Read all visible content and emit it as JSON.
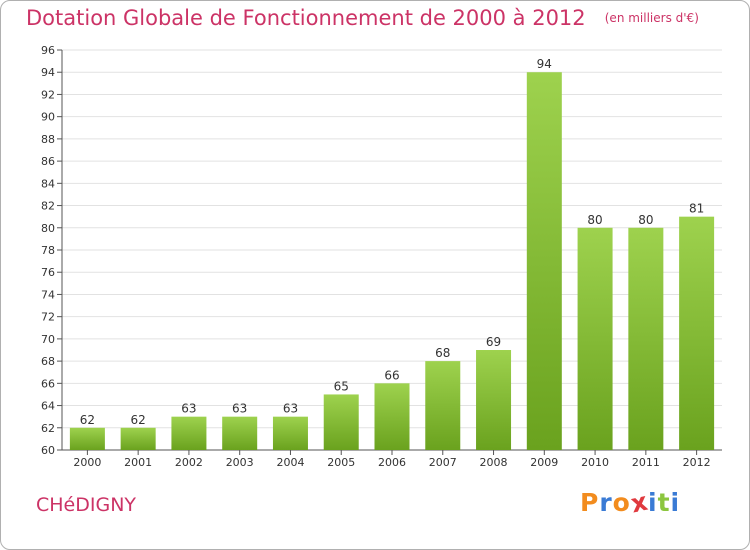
{
  "header": {
    "title": "Dotation Globale de Fonctionnement de 2000 à 2012",
    "unit_note": "(en milliers d'€)"
  },
  "footer": {
    "commune": "CHéDIGNY",
    "brand_letters": [
      "P",
      "r",
      "o",
      "x",
      "i",
      "t",
      "i"
    ],
    "brand_colors": [
      "#f28c1e",
      "#3a7bd5",
      "#f28c1e",
      "#e0393e",
      "#3a7bd5",
      "#8cc63f",
      "#3a7bd5"
    ]
  },
  "chart_data": {
    "type": "bar",
    "categories": [
      "2000",
      "2001",
      "2002",
      "2003",
      "2004",
      "2005",
      "2006",
      "2007",
      "2008",
      "2009",
      "2010",
      "2011",
      "2012"
    ],
    "values": [
      62,
      62,
      63,
      63,
      63,
      65,
      66,
      68,
      69,
      94,
      80,
      80,
      81
    ],
    "title": "Dotation Globale de Fonctionnement de 2000 à 2012",
    "xlabel": "",
    "ylabel": "",
    "ylim": [
      60,
      96
    ],
    "yticks": [
      60,
      62,
      64,
      66,
      68,
      70,
      72,
      74,
      76,
      78,
      80,
      82,
      84,
      86,
      88,
      90,
      92,
      94,
      96
    ],
    "grid": true,
    "bar_color_top": "#9ed24e",
    "bar_color_bottom": "#6aa21e",
    "grid_color": "#e2e2e2"
  }
}
